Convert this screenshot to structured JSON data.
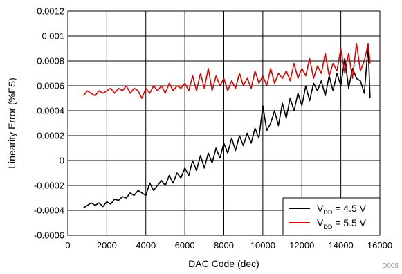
{
  "chart_data": {
    "type": "line",
    "title": "",
    "xlabel": "DAC Code (dec)",
    "ylabel": "Linearity Error (%FS)",
    "xlim": [
      0,
      16000
    ],
    "ylim": [
      -0.0006,
      0.0012
    ],
    "x_ticks": [
      0,
      2000,
      4000,
      6000,
      8000,
      10000,
      12000,
      14000,
      16000
    ],
    "x_tick_labels": [
      "0",
      "2000",
      "4000",
      "6000",
      "8000",
      "10000",
      "12000",
      "14000",
      "16000"
    ],
    "y_ticks": [
      -0.0006,
      -0.0004,
      -0.0002,
      0,
      0.0002,
      0.0004,
      0.0006,
      0.0008,
      0.001,
      0.0012
    ],
    "y_tick_labels": [
      "-0.0006",
      "-0.0004",
      "-0.0002",
      "0",
      "0.0002",
      "0.0004",
      "0.0006",
      "0.0008",
      "0.001",
      "0.0012"
    ],
    "grid": true,
    "legend_position": "bottom-right",
    "series": [
      {
        "name": "V_DD = 4.5 V",
        "legend": {
          "prefix": "V",
          "sub": "DD",
          "suffix": " = 4.5 V"
        },
        "color": "#000000",
        "x": [
          800,
          1000,
          1200,
          1400,
          1600,
          1800,
          2000,
          2200,
          2400,
          2600,
          2800,
          3000,
          3200,
          3400,
          3600,
          3800,
          4000,
          4200,
          4400,
          4600,
          4800,
          5000,
          5200,
          5400,
          5600,
          5800,
          6000,
          6200,
          6400,
          6600,
          6800,
          7000,
          7200,
          7400,
          7600,
          7800,
          8000,
          8200,
          8400,
          8600,
          8800,
          9000,
          9200,
          9400,
          9600,
          9800,
          10000,
          10200,
          10400,
          10600,
          10800,
          11000,
          11200,
          11400,
          11600,
          11800,
          12000,
          12200,
          12400,
          12600,
          12800,
          13000,
          13200,
          13400,
          13600,
          13800,
          14000,
          14200,
          14400,
          14600,
          14800,
          15000,
          15200,
          15400,
          15500
        ],
        "values": [
          -0.00038,
          -0.00036,
          -0.00034,
          -0.00036,
          -0.00034,
          -0.00037,
          -0.00033,
          -0.00035,
          -0.00031,
          -0.00032,
          -0.00029,
          -0.0003,
          -0.00026,
          -0.00028,
          -0.00024,
          -0.00026,
          -0.00028,
          -0.00018,
          -0.00024,
          -0.0002,
          -0.00016,
          -0.0002,
          -0.00012,
          -0.00018,
          -0.0001,
          -0.00014,
          -6e-05,
          -0.00012,
          0.0,
          -8e-05,
          4e-05,
          -6e-05,
          6e-05,
          -2e-05,
          0.0001,
          2e-05,
          0.00014,
          6e-05,
          0.00018,
          8e-05,
          0.0002,
          0.00012,
          0.00022,
          0.00014,
          0.00026,
          0.00018,
          0.00044,
          0.00024,
          0.0003,
          0.0004,
          0.00028,
          0.00046,
          0.00034,
          0.0005,
          0.0004,
          0.00054,
          0.00044,
          0.0006,
          0.00048,
          0.00062,
          0.00056,
          0.00064,
          0.00052,
          0.00068,
          0.00056,
          0.0007,
          0.0006,
          0.00082,
          0.00058,
          0.00074,
          0.00066,
          0.00064,
          0.00054,
          0.00092,
          0.0005
        ]
      },
      {
        "name": "V_DD = 5.5 V",
        "legend": {
          "prefix": "V",
          "sub": "DD",
          "suffix": " = 5.5 V"
        },
        "color": "#e00000",
        "x": [
          800,
          1000,
          1200,
          1400,
          1600,
          1800,
          2000,
          2200,
          2400,
          2600,
          2800,
          3000,
          3200,
          3400,
          3600,
          3800,
          4000,
          4200,
          4400,
          4600,
          4800,
          5000,
          5200,
          5400,
          5600,
          5800,
          6000,
          6200,
          6400,
          6600,
          6800,
          7000,
          7200,
          7400,
          7600,
          7800,
          8000,
          8200,
          8400,
          8600,
          8800,
          9000,
          9200,
          9400,
          9600,
          9800,
          10000,
          10200,
          10400,
          10600,
          10800,
          11000,
          11200,
          11400,
          11600,
          11800,
          12000,
          12200,
          12400,
          12600,
          12800,
          13000,
          13200,
          13400,
          13600,
          13800,
          14000,
          14200,
          14400,
          14600,
          14800,
          15000,
          15200,
          15400,
          15500
        ],
        "values": [
          0.00052,
          0.00056,
          0.00054,
          0.00052,
          0.00056,
          0.00054,
          0.00056,
          0.00058,
          0.00054,
          0.00058,
          0.00056,
          0.0006,
          0.00054,
          0.00058,
          0.00056,
          0.0005,
          0.00058,
          0.00054,
          0.0006,
          0.00056,
          0.0006,
          0.00054,
          0.00062,
          0.00056,
          0.0006,
          0.00058,
          0.00062,
          0.00056,
          0.00068,
          0.00056,
          0.0007,
          0.00058,
          0.00074,
          0.00056,
          0.00068,
          0.0006,
          0.00066,
          0.00056,
          0.00064,
          0.00058,
          0.0007,
          0.0006,
          0.00066,
          0.00058,
          0.00072,
          0.00062,
          0.00068,
          0.0006,
          0.00074,
          0.00062,
          0.0007,
          0.00066,
          0.00072,
          0.00064,
          0.00078,
          0.00066,
          0.00074,
          0.00068,
          0.00082,
          0.00066,
          0.00076,
          0.0007,
          0.00086,
          0.00068,
          0.00078,
          0.00072,
          0.0009,
          0.0007,
          0.00086,
          0.00066,
          0.00094,
          0.00072,
          0.0008,
          0.00094,
          0.00078
        ]
      }
    ]
  },
  "footer": {
    "code": "D005"
  }
}
